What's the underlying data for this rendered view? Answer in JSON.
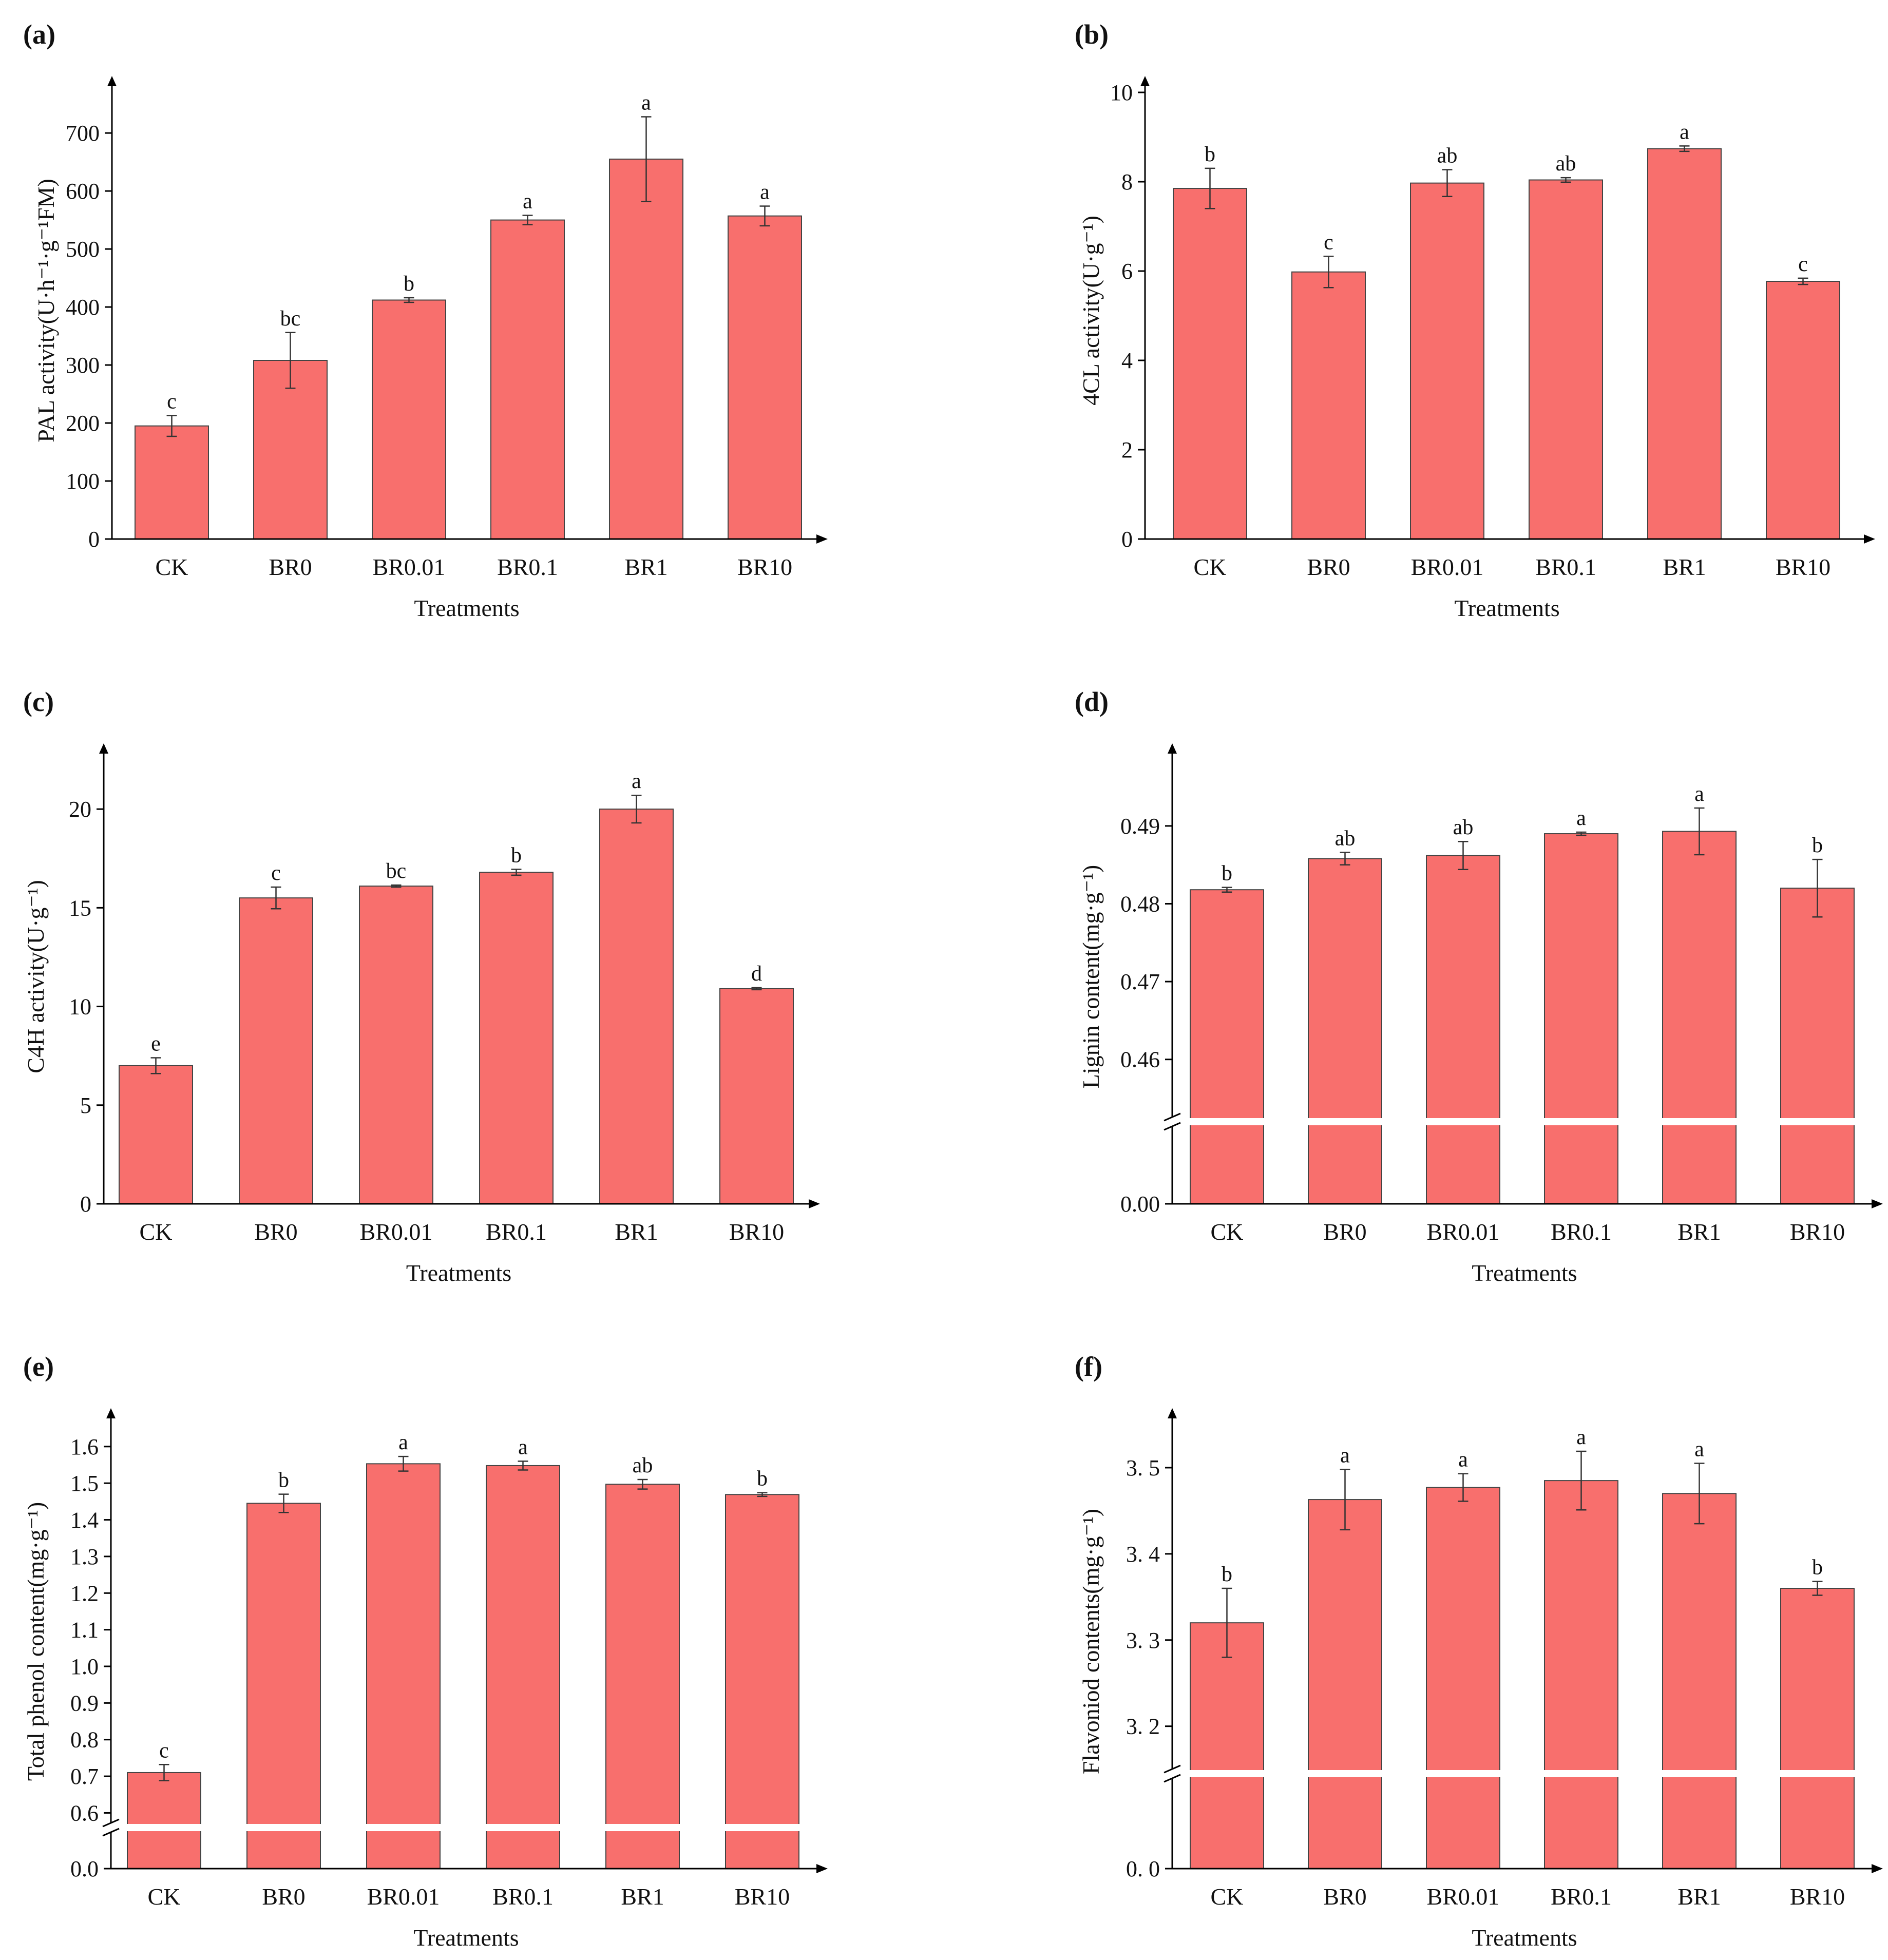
{
  "figure": {
    "colors": {
      "bar": "#F86F6D",
      "bar_stroke": "#444444",
      "axis": "#000000",
      "break": "#ffffff"
    }
  },
  "chart_data": [
    {
      "id": "a",
      "panel_label": "(a)",
      "type": "bar",
      "categories": [
        "CK",
        "BR0",
        "BR0.01",
        "BR0.1",
        "BR1",
        "BR10"
      ],
      "values": [
        195,
        308,
        412,
        550,
        655,
        557
      ],
      "errors": [
        18,
        48,
        4,
        8,
        73,
        17
      ],
      "significance": [
        "c",
        "bc",
        "b",
        "a",
        "a",
        "a"
      ],
      "xlabel": "Treatments",
      "ylabel": "PAL activity(U·h⁻¹·g⁻¹FM)",
      "ylim": [
        0,
        770
      ],
      "yticks": [
        0,
        100,
        200,
        300,
        400,
        500,
        600,
        700
      ],
      "ytick_labels": [
        "0",
        "100",
        "200",
        "300",
        "400",
        "500",
        "600",
        "700"
      ],
      "grid": false
    },
    {
      "id": "b",
      "panel_label": "(b)",
      "type": "bar",
      "categories": [
        "CK",
        "BR0",
        "BR0.01",
        "BR0.1",
        "BR1",
        "BR10"
      ],
      "values": [
        7.85,
        5.98,
        7.97,
        8.04,
        8.74,
        5.77
      ],
      "errors": [
        0.45,
        0.35,
        0.3,
        0.05,
        0.06,
        0.07
      ],
      "significance": [
        "b",
        "c",
        "ab",
        "ab",
        "a",
        "c"
      ],
      "xlabel": "Treatments",
      "ylabel": "4CL activity(U·g⁻¹)",
      "ylim": [
        0,
        10
      ],
      "yticks": [
        0,
        2,
        4,
        6,
        8,
        10
      ],
      "ytick_labels": [
        "0",
        "2",
        "4",
        "6",
        "8",
        "10"
      ],
      "grid": false
    },
    {
      "id": "c",
      "panel_label": "(c)",
      "type": "bar",
      "categories": [
        "CK",
        "BR0",
        "BR0.01",
        "BR0.1",
        "BR1",
        "BR10"
      ],
      "values": [
        7.0,
        15.5,
        16.1,
        16.8,
        20.0,
        10.9
      ],
      "errors": [
        0.4,
        0.55,
        0.05,
        0.15,
        0.7,
        0.05
      ],
      "significance": [
        "e",
        "c",
        "bc",
        "b",
        "a",
        "d"
      ],
      "xlabel": "Treatments",
      "ylabel": "C4H activity(U·g⁻¹)",
      "ylim": [
        0,
        22.5
      ],
      "yticks": [
        0,
        5,
        10,
        15,
        20
      ],
      "ytick_labels": [
        "0",
        "5",
        "10",
        "15",
        "20"
      ],
      "grid": false
    },
    {
      "id": "d",
      "panel_label": "(d)",
      "type": "bar",
      "categories": [
        "CK",
        "BR0",
        "BR0.01",
        "BR0.1",
        "BR1",
        "BR10"
      ],
      "values": [
        0.4818,
        0.4858,
        0.4862,
        0.489,
        0.4893,
        0.482
      ],
      "errors": [
        0.0003,
        0.0008,
        0.0018,
        0.0002,
        0.003,
        0.0037
      ],
      "significance": [
        "b",
        "ab",
        "ab",
        "a",
        "a",
        "b"
      ],
      "xlabel": "Treatments",
      "ylabel": "Lignin content(mg·g⁻¹)",
      "ylim_lower": [
        0,
        0.452
      ],
      "ylim_upper": [
        0.452,
        0.4985
      ],
      "axis_break": true,
      "yticks": [
        0.0,
        0.46,
        0.47,
        0.48,
        0.49
      ],
      "ytick_labels": [
        "0.00",
        "0.46",
        "0.47",
        "0.48",
        "0.49"
      ],
      "grid": false
    },
    {
      "id": "e",
      "panel_label": "(e)",
      "type": "bar",
      "categories": [
        "CK",
        "BR0",
        "BR0.01",
        "BR0.1",
        "BR1",
        "BR10"
      ],
      "values": [
        0.71,
        1.445,
        1.553,
        1.548,
        1.497,
        1.469
      ],
      "errors": [
        0.022,
        0.025,
        0.02,
        0.012,
        0.013,
        0.005
      ],
      "significance": [
        "c",
        "b",
        "a",
        "a",
        "ab",
        "b"
      ],
      "xlabel": "Treatments",
      "ylabel": "Total phenol content(mg·g⁻¹)",
      "ylim_lower": [
        0,
        0.56
      ],
      "ylim_upper": [
        0.56,
        1.66
      ],
      "axis_break": true,
      "yticks": [
        0.0,
        0.6,
        0.7,
        0.8,
        0.9,
        1.0,
        1.1,
        1.2,
        1.3,
        1.4,
        1.5,
        1.6
      ],
      "ytick_labels": [
        "0.0",
        "0.6",
        "0.7",
        "0.8",
        "0.9",
        "1.0",
        "1.1",
        "1.2",
        "1.3",
        "1.4",
        "1.5",
        "1.6"
      ],
      "grid": false
    },
    {
      "id": "f",
      "panel_label": "(f)",
      "type": "bar",
      "categories": [
        "CK",
        "BR0",
        "BR0.01",
        "BR0.1",
        "BR1",
        "BR10"
      ],
      "values": [
        3.32,
        3.463,
        3.477,
        3.485,
        3.47,
        3.36
      ],
      "errors": [
        0.04,
        0.035,
        0.016,
        0.034,
        0.035,
        0.008
      ],
      "significance": [
        "b",
        "a",
        "a",
        "a",
        "a",
        "b"
      ],
      "xlabel": "Treatments",
      "ylabel": "Flavoniod contents(mg·g⁻¹)",
      "ylim_lower": [
        0,
        3.145
      ],
      "ylim_upper": [
        3.145,
        3.55
      ],
      "axis_break": true,
      "yticks": [
        0,
        3.2,
        3.3,
        3.4,
        3.5
      ],
      "ytick_labels": [
        "0. 0",
        "3. 2",
        "3. 3",
        "3. 4",
        "3. 5"
      ],
      "grid": false
    }
  ]
}
